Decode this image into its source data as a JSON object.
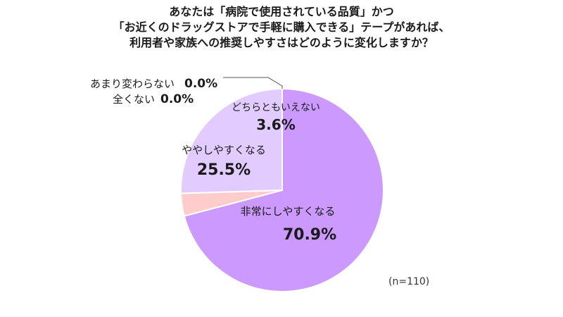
{
  "title_lines": [
    "あなたは「病院で使用されている品質」かつ",
    "「お近くのドラッグストアで手軽に購入できる」テープがあれば、",
    "利用者や家族への推奨しやすさはどのように変化しますか？"
  ],
  "sample_size": "(n=110)",
  "chart_data": {
    "type": "pie",
    "title": "あなたは「病院で使用されている品質」かつ「お近くのドラッグストアで手軽に購入できる」テープがあれば、利用者や家族への推奨しやすさはどのように変化しますか？",
    "unit": "%",
    "slices": [
      {
        "label": "非常にしやすくなる",
        "value": 70.9,
        "value_label": "70.9%",
        "color": "#cc99ff"
      },
      {
        "label": "全くない",
        "value": 0.0,
        "value_label": "0.0%",
        "color": "#b3b3b3"
      },
      {
        "label": "あまり変わらない",
        "value": 0.0,
        "value_label": "0.0%",
        "color": "#99ccff"
      },
      {
        "label": "どちらともいえない",
        "value": 3.6,
        "value_label": "3.6%",
        "color": "#ffcccc"
      },
      {
        "label": "ややしやすくなる",
        "value": 25.5,
        "value_label": "25.5%",
        "color": "#e2ccff"
      }
    ],
    "start_angle": "12 o'clock",
    "direction": "clockwise",
    "legend": "none"
  }
}
